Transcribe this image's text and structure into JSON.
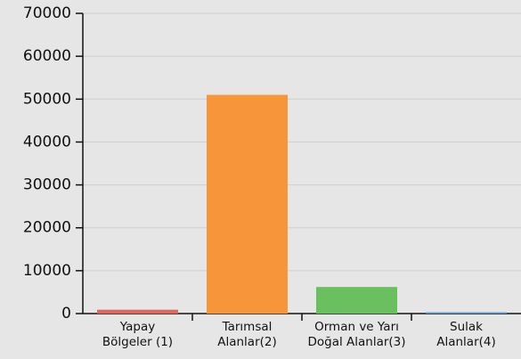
{
  "chart_data": {
    "type": "bar",
    "categories": [
      "Yapay\nBölgeler (1)",
      "Tarımsal\nAlanlar(2)",
      "Orman ve Yarı\nDoğal Alanlar(3)",
      "Sulak\nAlanlar(4)"
    ],
    "values": [
      900,
      51000,
      6200,
      300
    ],
    "colors": [
      "#e0675a",
      "#f7953a",
      "#6abf5f",
      "#5a9bd5"
    ],
    "ylim": [
      0,
      70000
    ],
    "yticks": [
      0,
      10000,
      20000,
      30000,
      40000,
      50000,
      60000,
      70000
    ],
    "grid": true
  }
}
